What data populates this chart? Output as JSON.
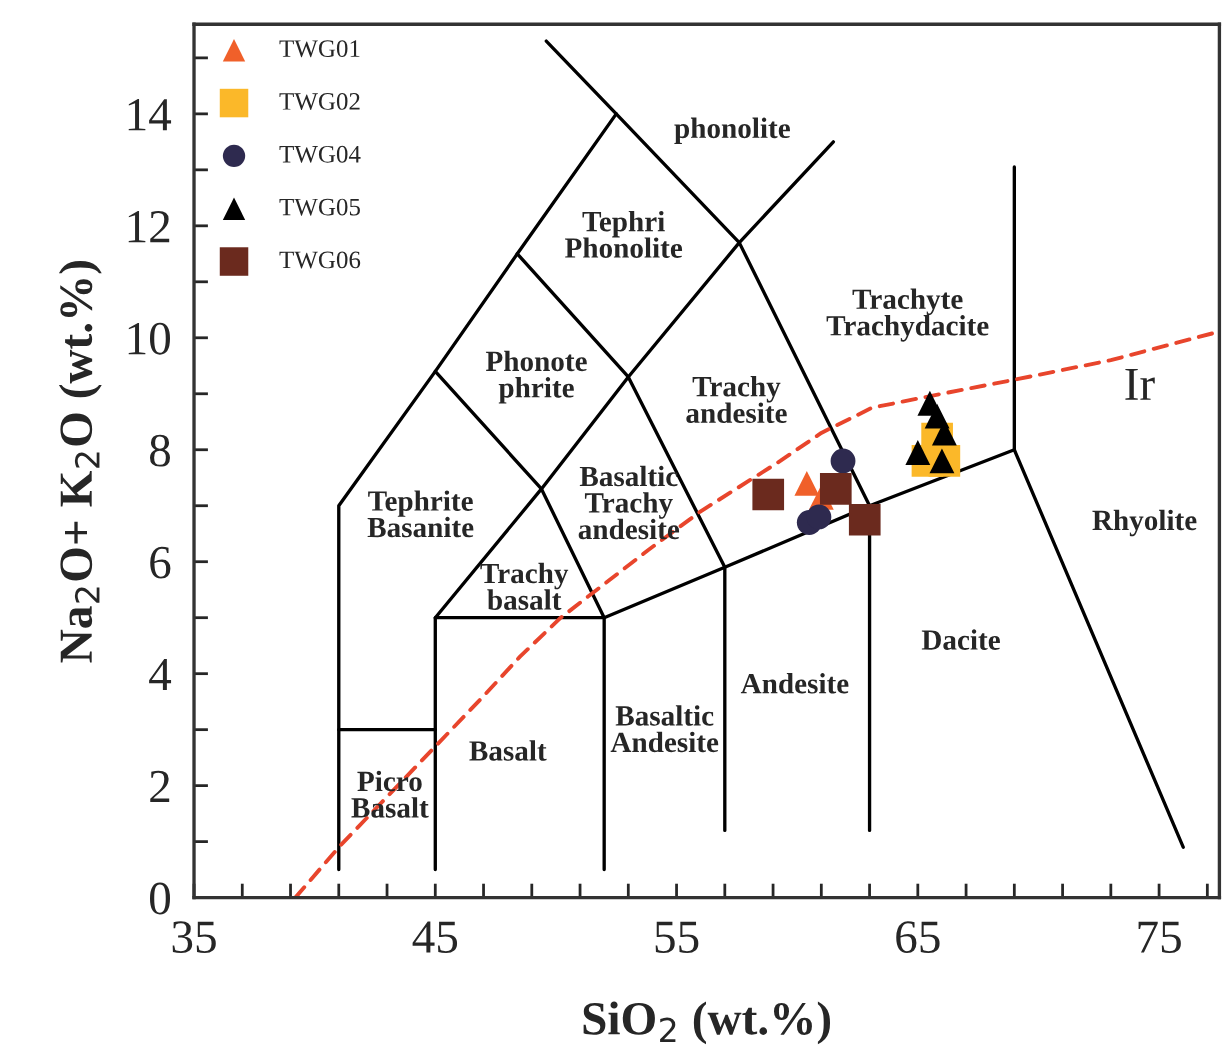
{
  "chart_data": {
    "type": "scatter",
    "xlabel": "SiO$_{2}$ (wt.%)",
    "ylabel": "Na$_{2}$O+ K$_{2}$O (wt.%)",
    "xlim": [
      35,
      77.5
    ],
    "ylim": [
      0,
      15.6
    ],
    "xticks": [
      35,
      {
        "value": 37,
        "label": null
      },
      {
        "value": 39,
        "label": null
      },
      {
        "value": 41,
        "label": null
      },
      {
        "value": 43,
        "label": null
      },
      45,
      {
        "value": 47,
        "label": null
      },
      {
        "value": 49,
        "label": null
      },
      {
        "value": 51,
        "label": null
      },
      {
        "value": 53,
        "label": null
      },
      55,
      {
        "value": 57,
        "label": null
      },
      {
        "value": 59,
        "label": null
      },
      {
        "value": 61,
        "label": null
      },
      {
        "value": 63,
        "label": null
      },
      65,
      {
        "value": 67,
        "label": null
      },
      {
        "value": 69,
        "label": null
      },
      {
        "value": 71,
        "label": null
      },
      {
        "value": 73,
        "label": null
      },
      75,
      {
        "value": 77,
        "label": null
      }
    ],
    "yticks": [
      0,
      {
        "value": 1,
        "label": null
      },
      2,
      {
        "value": 3,
        "label": null
      },
      4,
      {
        "value": 5,
        "label": null
      },
      6,
      {
        "value": 7,
        "label": null
      },
      8,
      {
        "value": 9,
        "label": null
      },
      10,
      {
        "value": 11,
        "label": null
      },
      12,
      {
        "value": 13,
        "label": null
      },
      14,
      {
        "value": 15,
        "label": null
      }
    ],
    "grid": false,
    "legend": "top left",
    "series": [
      {
        "type": "line",
        "color": "#000000",
        "line_style": "solid",
        "marker": "none",
        "x": [
          41,
          41,
          45,
          48.4,
          52.5
        ],
        "values": [
          0.5,
          7,
          9.4,
          11.5,
          14
        ]
      },
      {
        "type": "line",
        "color": "#000000",
        "line_style": "solid",
        "marker": "none",
        "x": [
          49.6,
          52.5,
          57.6,
          63,
          63
        ],
        "values": [
          15.3,
          14,
          11.7,
          7,
          1.2
        ]
      },
      {
        "type": "line",
        "color": "#000000",
        "line_style": "solid",
        "marker": "none",
        "x": [
          41,
          45
        ],
        "values": [
          3,
          3
        ]
      },
      {
        "type": "line",
        "color": "#000000",
        "line_style": "solid",
        "marker": "none",
        "x": [
          45,
          45,
          52,
          52
        ],
        "values": [
          0.5,
          5,
          5,
          0.5
        ]
      },
      {
        "type": "line",
        "color": "#000000",
        "line_style": "solid",
        "marker": "none",
        "x": [
          52,
          57,
          63,
          69,
          69
        ],
        "values": [
          5,
          5.9,
          7,
          8,
          13.05
        ]
      },
      {
        "type": "line",
        "color": "#000000",
        "line_style": "solid",
        "marker": "none",
        "x": [
          69,
          76
        ],
        "values": [
          8,
          0.9
        ]
      },
      {
        "type": "line",
        "color": "#000000",
        "line_style": "solid",
        "marker": "none",
        "x": [
          45,
          49.4,
          53,
          57.6,
          61.5
        ],
        "values": [
          5,
          7.3,
          9.3,
          11.7,
          13.5
        ]
      },
      {
        "type": "line",
        "color": "#000000",
        "line_style": "solid",
        "marker": "none",
        "x": [
          45,
          49.4,
          52
        ],
        "values": [
          9.4,
          7.3,
          5
        ]
      },
      {
        "type": "line",
        "color": "#000000",
        "line_style": "solid",
        "marker": "none",
        "x": [
          48.4,
          53,
          57,
          57
        ],
        "values": [
          11.5,
          9.3,
          5.9,
          1.2
        ]
      },
      {
        "type": "line",
        "color": "#e8452c",
        "line_style": "dashed",
        "marker": "none",
        "x": [
          39.2,
          41,
          43,
          45,
          47,
          48.5,
          50.2,
          52,
          53.8,
          56,
          59.3,
          61,
          63.1,
          66,
          69,
          73,
          77.4
        ],
        "values": [
          0,
          0.9,
          1.8,
          2.7,
          3.6,
          4.3,
          5.0,
          5.6,
          6.2,
          6.9,
          7.8,
          8.3,
          8.75,
          9.0,
          9.25,
          9.6,
          10.1
        ]
      },
      {
        "name": "TWG01",
        "marker": "triangle",
        "color": "#f0602a",
        "x": [
          60.4,
          61.0
        ],
        "values": [
          7.4,
          7.15
        ]
      },
      {
        "name": "TWG02",
        "marker": "square",
        "color": "#fbb829",
        "x": [
          65.8,
          66.1,
          65.4
        ],
        "values": [
          8.2,
          7.8,
          7.8
        ]
      },
      {
        "name": "TWG04",
        "marker": "circle",
        "color": "#2e2a4f",
        "x": [
          61.9,
          60.5,
          60.9
        ],
        "values": [
          7.8,
          6.7,
          6.8
        ]
      },
      {
        "name": "TWG05",
        "marker": "triangle",
        "color": "#000000",
        "x": [
          65.5,
          65.8,
          66.1,
          65.0,
          66.0
        ],
        "values": [
          8.83,
          8.6,
          8.3,
          7.95,
          7.8
        ]
      },
      {
        "name": "TWG06",
        "marker": "square",
        "color": "#6b2a1e",
        "x": [
          58.8,
          61.6,
          62.8
        ],
        "values": [
          7.2,
          7.3,
          6.75
        ]
      }
    ],
    "annotations": [
      "phonolite",
      "Tephri\nPhonolite",
      "Phonote\nphrite",
      "Tephrite\nBasanite",
      "Trachy\nbasalt",
      "Basaltic\nTrachy\nandesite",
      "Trachy\nandesite",
      "Trachyte\nTrachydacite",
      "Rhyolite",
      "Dacite",
      "Andesite",
      "Basaltic\nAndesite",
      "Basalt",
      "Picro\nBasalt",
      "Ir"
    ]
  }
}
